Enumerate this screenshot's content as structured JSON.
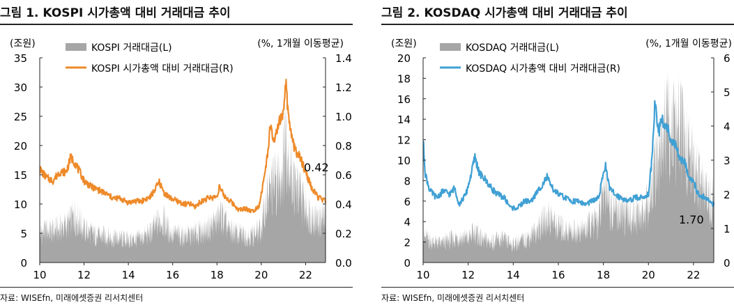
{
  "panels": [
    {
      "title": "그림 1. KOSPI 시가총액 대비 거래대금 추이",
      "source": "자료: WISEfn, 미래에셋증권 리서치센터",
      "chart_data": {
        "type": "area+line",
        "left_unit": "(조원)",
        "right_unit": "(%, 1개월 이동평균)",
        "x_ticks": [
          "10",
          "12",
          "14",
          "16",
          "18",
          "20",
          "22"
        ],
        "xlim": [
          2010,
          2022.9
        ],
        "left_ylim": [
          0,
          35
        ],
        "left_ticks": [
          "0",
          "5",
          "10",
          "15",
          "20",
          "25",
          "30",
          "35"
        ],
        "right_ylim": [
          0,
          1.4
        ],
        "right_ticks": [
          "0.0",
          "0.2",
          "0.4",
          "0.6",
          "0.8",
          "1.0",
          "1.2",
          "1.4"
        ],
        "annotation": "0.42",
        "series": [
          {
            "name": "KOSPI 거래대금(L)",
            "axis": "left",
            "color": "#a6a6a6",
            "points": [
              [
                2010.0,
                4.8
              ],
              [
                2010.3,
                5.5
              ],
              [
                2010.6,
                5.2
              ],
              [
                2011.0,
                6.0
              ],
              [
                2011.3,
                6.5
              ],
              [
                2011.6,
                8.0
              ],
              [
                2011.8,
                7.0
              ],
              [
                2012.0,
                5.5
              ],
              [
                2012.3,
                5.0
              ],
              [
                2012.6,
                4.5
              ],
              [
                2013.0,
                4.5
              ],
              [
                2013.5,
                4.0
              ],
              [
                2014.0,
                3.8
              ],
              [
                2014.5,
                4.0
              ],
              [
                2015.0,
                5.0
              ],
              [
                2015.3,
                6.5
              ],
              [
                2015.5,
                7.5
              ],
              [
                2015.8,
                5.5
              ],
              [
                2016.0,
                4.8
              ],
              [
                2016.5,
                4.5
              ],
              [
                2017.0,
                4.8
              ],
              [
                2017.5,
                5.5
              ],
              [
                2018.0,
                7.0
              ],
              [
                2018.2,
                8.0
              ],
              [
                2018.5,
                5.5
              ],
              [
                2019.0,
                4.8
              ],
              [
                2019.5,
                4.5
              ],
              [
                2020.0,
                5.5
              ],
              [
                2020.2,
                10.0
              ],
              [
                2020.5,
                13.0
              ],
              [
                2020.8,
                14.0
              ],
              [
                2021.0,
                17.0
              ],
              [
                2021.1,
                22.0
              ],
              [
                2021.3,
                16.0
              ],
              [
                2021.5,
                13.0
              ],
              [
                2021.8,
                11.0
              ],
              [
                2022.0,
                9.0
              ],
              [
                2022.3,
                8.0
              ],
              [
                2022.6,
                7.0
              ],
              [
                2022.9,
                7.5
              ]
            ]
          },
          {
            "name": "KOSPI 시가총액 대비 거래대금(R)",
            "axis": "right",
            "color": "#ee8a2a",
            "points": [
              [
                2010.0,
                0.64
              ],
              [
                2010.3,
                0.58
              ],
              [
                2010.6,
                0.56
              ],
              [
                2010.9,
                0.62
              ],
              [
                2011.2,
                0.62
              ],
              [
                2011.4,
                0.72
              ],
              [
                2011.6,
                0.68
              ],
              [
                2011.8,
                0.62
              ],
              [
                2012.0,
                0.56
              ],
              [
                2012.3,
                0.52
              ],
              [
                2012.6,
                0.5
              ],
              [
                2013.0,
                0.47
              ],
              [
                2013.3,
                0.44
              ],
              [
                2013.6,
                0.44
              ],
              [
                2014.0,
                0.41
              ],
              [
                2014.3,
                0.42
              ],
              [
                2014.6,
                0.42
              ],
              [
                2015.0,
                0.45
              ],
              [
                2015.2,
                0.5
              ],
              [
                2015.4,
                0.55
              ],
              [
                2015.6,
                0.48
              ],
              [
                2015.9,
                0.44
              ],
              [
                2016.2,
                0.42
              ],
              [
                2016.5,
                0.4
              ],
              [
                2016.8,
                0.4
              ],
              [
                2017.0,
                0.38
              ],
              [
                2017.3,
                0.42
              ],
              [
                2017.6,
                0.44
              ],
              [
                2018.0,
                0.45
              ],
              [
                2018.1,
                0.52
              ],
              [
                2018.3,
                0.46
              ],
              [
                2018.6,
                0.42
              ],
              [
                2019.0,
                0.36
              ],
              [
                2019.3,
                0.37
              ],
              [
                2019.6,
                0.35
              ],
              [
                2019.9,
                0.39
              ],
              [
                2020.1,
                0.55
              ],
              [
                2020.25,
                0.7
              ],
              [
                2020.4,
                0.92
              ],
              [
                2020.6,
                0.82
              ],
              [
                2020.8,
                0.96
              ],
              [
                2021.0,
                1.0
              ],
              [
                2021.1,
                1.24
              ],
              [
                2021.25,
                0.95
              ],
              [
                2021.5,
                0.78
              ],
              [
                2021.8,
                0.7
              ],
              [
                2022.0,
                0.62
              ],
              [
                2022.3,
                0.5
              ],
              [
                2022.6,
                0.44
              ],
              [
                2022.9,
                0.42
              ]
            ]
          }
        ]
      }
    },
    {
      "title": "그림 2. KOSDAQ 시가총액 대비 거래대금 추이",
      "source": "자료: WISEfn, 미래에셋증권 리서치센터",
      "chart_data": {
        "type": "area+line",
        "left_unit": "(조원)",
        "right_unit": "(%, 1개월 이동평균)",
        "x_ticks": [
          "10",
          "12",
          "14",
          "16",
          "18",
          "20",
          "22"
        ],
        "xlim": [
          2010,
          2022.9
        ],
        "left_ylim": [
          0,
          20
        ],
        "left_ticks": [
          "0",
          "2",
          "4",
          "6",
          "8",
          "10",
          "12",
          "14",
          "16",
          "18",
          "20"
        ],
        "right_ylim": [
          0,
          6
        ],
        "right_ticks": [
          "0",
          "1",
          "2",
          "3",
          "4",
          "5",
          "6"
        ],
        "annotation": "1.70",
        "series": [
          {
            "name": "KOSDAQ 거래대금(L)",
            "axis": "left",
            "color": "#a6a6a6",
            "points": [
              [
                2010.0,
                2.5
              ],
              [
                2010.4,
                2.0
              ],
              [
                2010.8,
                1.8
              ],
              [
                2011.2,
                2.2
              ],
              [
                2011.6,
                2.5
              ],
              [
                2012.0,
                2.3
              ],
              [
                2012.3,
                3.0
              ],
              [
                2012.6,
                2.2
              ],
              [
                2013.0,
                2.0
              ],
              [
                2013.5,
                2.2
              ],
              [
                2014.0,
                1.8
              ],
              [
                2014.5,
                2.2
              ],
              [
                2015.0,
                3.0
              ],
              [
                2015.3,
                3.8
              ],
              [
                2015.6,
                4.5
              ],
              [
                2015.9,
                3.5
              ],
              [
                2016.2,
                3.2
              ],
              [
                2016.6,
                3.0
              ],
              [
                2017.0,
                3.0
              ],
              [
                2017.4,
                3.5
              ],
              [
                2017.8,
                4.2
              ],
              [
                2018.0,
                6.5
              ],
              [
                2018.1,
                8.0
              ],
              [
                2018.3,
                5.5
              ],
              [
                2018.6,
                5.0
              ],
              [
                2019.0,
                4.5
              ],
              [
                2019.4,
                4.5
              ],
              [
                2019.8,
                4.8
              ],
              [
                2020.1,
                6.0
              ],
              [
                2020.3,
                9.0
              ],
              [
                2020.5,
                11.0
              ],
              [
                2020.8,
                13.0
              ],
              [
                2021.0,
                13.5
              ],
              [
                2021.2,
                12.0
              ],
              [
                2021.4,
                13.0
              ],
              [
                2021.6,
                11.5
              ],
              [
                2021.9,
                10.0
              ],
              [
                2022.2,
                8.0
              ],
              [
                2022.5,
                6.5
              ],
              [
                2022.9,
                6.0
              ]
            ]
          },
          {
            "name": "KOSDAQ 시가총액 대비 거래대금(R)",
            "axis": "right",
            "color": "#3fa0d4",
            "points": [
              [
                2010.0,
                3.6
              ],
              [
                2010.1,
                2.6
              ],
              [
                2010.3,
                2.1
              ],
              [
                2010.6,
                1.9
              ],
              [
                2010.9,
                2.1
              ],
              [
                2011.2,
                2.0
              ],
              [
                2011.4,
                2.2
              ],
              [
                2011.6,
                1.7
              ],
              [
                2011.9,
                2.0
              ],
              [
                2012.1,
                2.5
              ],
              [
                2012.3,
                3.1
              ],
              [
                2012.5,
                2.6
              ],
              [
                2012.8,
                2.4
              ],
              [
                2013.0,
                2.2
              ],
              [
                2013.3,
                2.0
              ],
              [
                2013.6,
                1.9
              ],
              [
                2013.9,
                1.6
              ],
              [
                2014.2,
                1.6
              ],
              [
                2014.5,
                1.8
              ],
              [
                2014.8,
                1.8
              ],
              [
                2015.0,
                2.0
              ],
              [
                2015.3,
                2.3
              ],
              [
                2015.5,
                2.5
              ],
              [
                2015.7,
                2.2
              ],
              [
                2016.0,
                2.0
              ],
              [
                2016.3,
                1.9
              ],
              [
                2016.6,
                1.8
              ],
              [
                2016.9,
                1.8
              ],
              [
                2017.2,
                1.7
              ],
              [
                2017.5,
                1.8
              ],
              [
                2017.8,
                1.9
              ],
              [
                2018.0,
                2.6
              ],
              [
                2018.1,
                2.9
              ],
              [
                2018.25,
                2.2
              ],
              [
                2018.5,
                2.0
              ],
              [
                2018.8,
                1.9
              ],
              [
                2019.1,
                1.8
              ],
              [
                2019.4,
                1.9
              ],
              [
                2019.7,
                1.9
              ],
              [
                2020.0,
                2.0
              ],
              [
                2020.15,
                3.0
              ],
              [
                2020.3,
                4.8
              ],
              [
                2020.45,
                3.8
              ],
              [
                2020.6,
                4.2
              ],
              [
                2020.8,
                4.0
              ],
              [
                2021.0,
                3.6
              ],
              [
                2021.2,
                3.4
              ],
              [
                2021.4,
                3.0
              ],
              [
                2021.6,
                3.0
              ],
              [
                2021.8,
                2.5
              ],
              [
                2022.0,
                2.4
              ],
              [
                2022.2,
                2.0
              ],
              [
                2022.5,
                1.9
              ],
              [
                2022.9,
                1.7
              ]
            ]
          }
        ]
      }
    }
  ]
}
